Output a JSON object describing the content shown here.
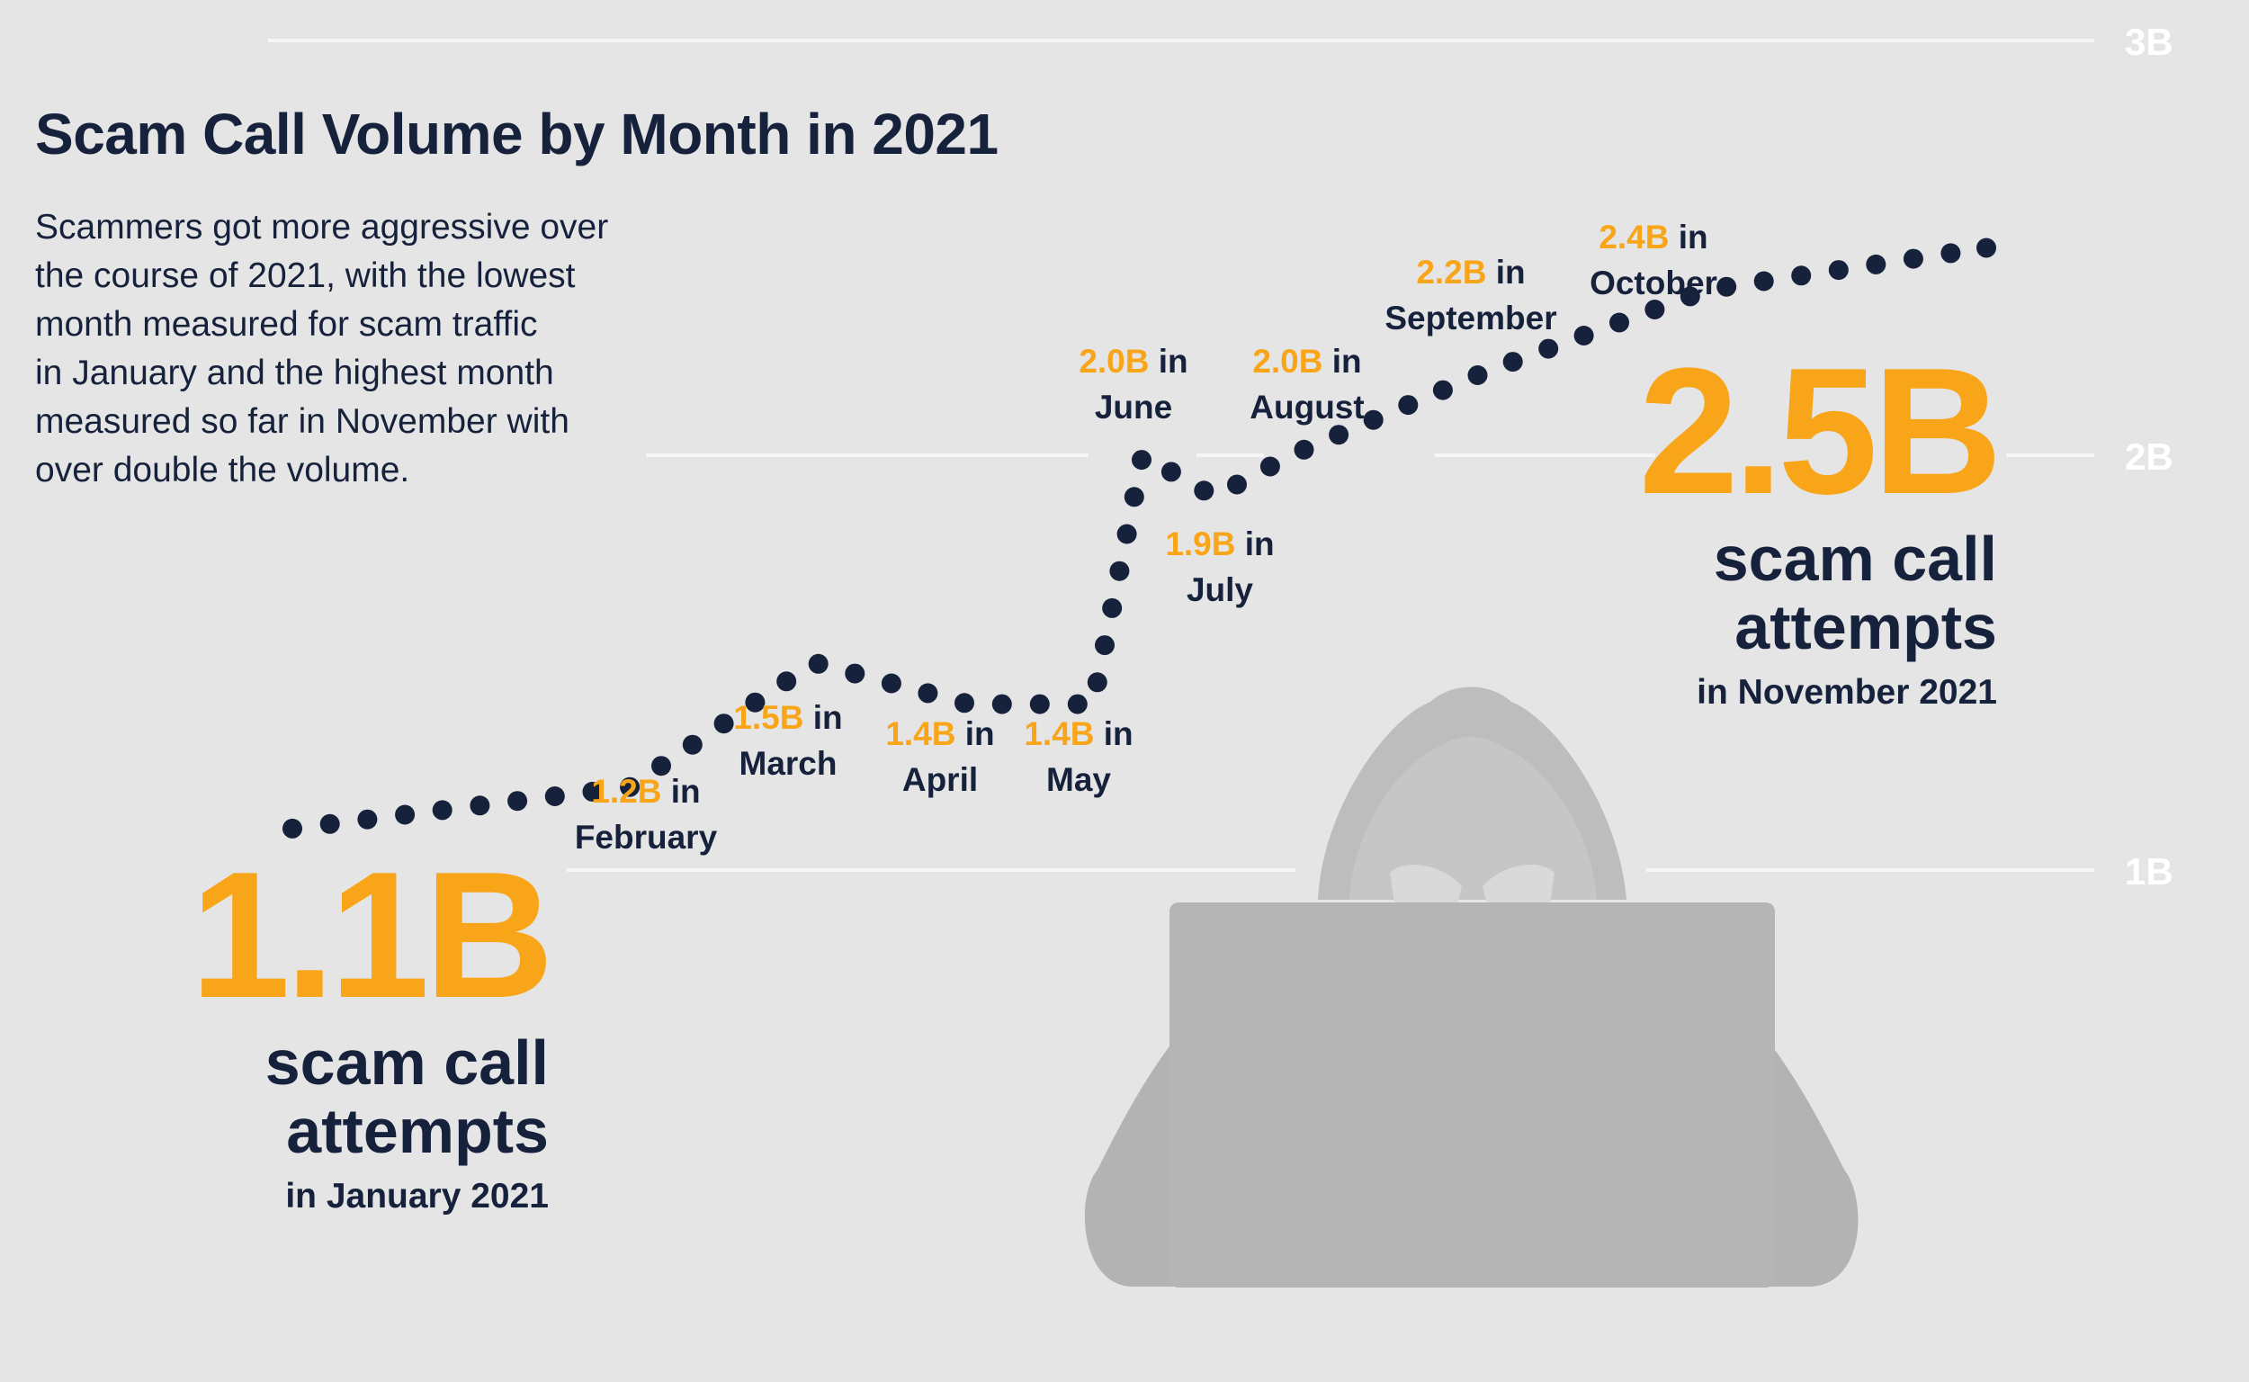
{
  "title": "Scam Call Volume by Month in 2021",
  "description_lines": [
    "Scammers got more aggressive over",
    "the course of 2021, with the lowest",
    "month measured for scam traffic",
    "in January and the highest month",
    "measured so far in November with",
    "over double the volume."
  ],
  "colors": {
    "accent": "#f9a51a",
    "text": "#16213b",
    "gridline": "#f6f6f6",
    "background": "#e5e5e5",
    "silhouette": "#b5b5b5"
  },
  "icons": [
    "hooded-hacker-laptop-icon"
  ],
  "chart_data": {
    "type": "line",
    "title": "Scam Call Volume by Month in 2021",
    "x": [
      "January",
      "February",
      "March",
      "April",
      "May",
      "June",
      "July",
      "August",
      "September",
      "October",
      "November"
    ],
    "series": [
      {
        "values": [
          1.1,
          1.2,
          1.5,
          1.4,
          1.4,
          2.0,
          1.9,
          2.0,
          2.2,
          2.4,
          2.5
        ]
      }
    ],
    "y_ticks": [
      "1B",
      "2B",
      "3B"
    ],
    "ylim": [
      1,
      3
    ],
    "grid": true,
    "style": "dotted",
    "point_labels": [
      {
        "month": "February",
        "value": "1.2B",
        "suffix": "in",
        "name": "February"
      },
      {
        "month": "March",
        "value": "1.5B",
        "suffix": "in",
        "name": "March"
      },
      {
        "month": "April",
        "value": "1.4B",
        "suffix": "in",
        "name": "April"
      },
      {
        "month": "May",
        "value": "1.4B",
        "suffix": "in",
        "name": "May"
      },
      {
        "month": "June",
        "value": "2.0B",
        "suffix": "in",
        "name": "June"
      },
      {
        "month": "July",
        "value": "1.9B",
        "suffix": "in",
        "name": "July"
      },
      {
        "month": "August",
        "value": "2.0B",
        "suffix": "in",
        "name": "August"
      },
      {
        "month": "September",
        "value": "2.2B",
        "suffix": "in",
        "name": "September"
      },
      {
        "month": "October",
        "value": "2.4B",
        "suffix": "in",
        "name": "October"
      }
    ],
    "highlights": {
      "january": {
        "value": "1.1B",
        "line1": "scam call",
        "line2": "attempts",
        "when": "in January 2021"
      },
      "november": {
        "value": "2.5B",
        "line1": "scam call",
        "line2": "attempts",
        "when": "in November 2021"
      }
    }
  }
}
